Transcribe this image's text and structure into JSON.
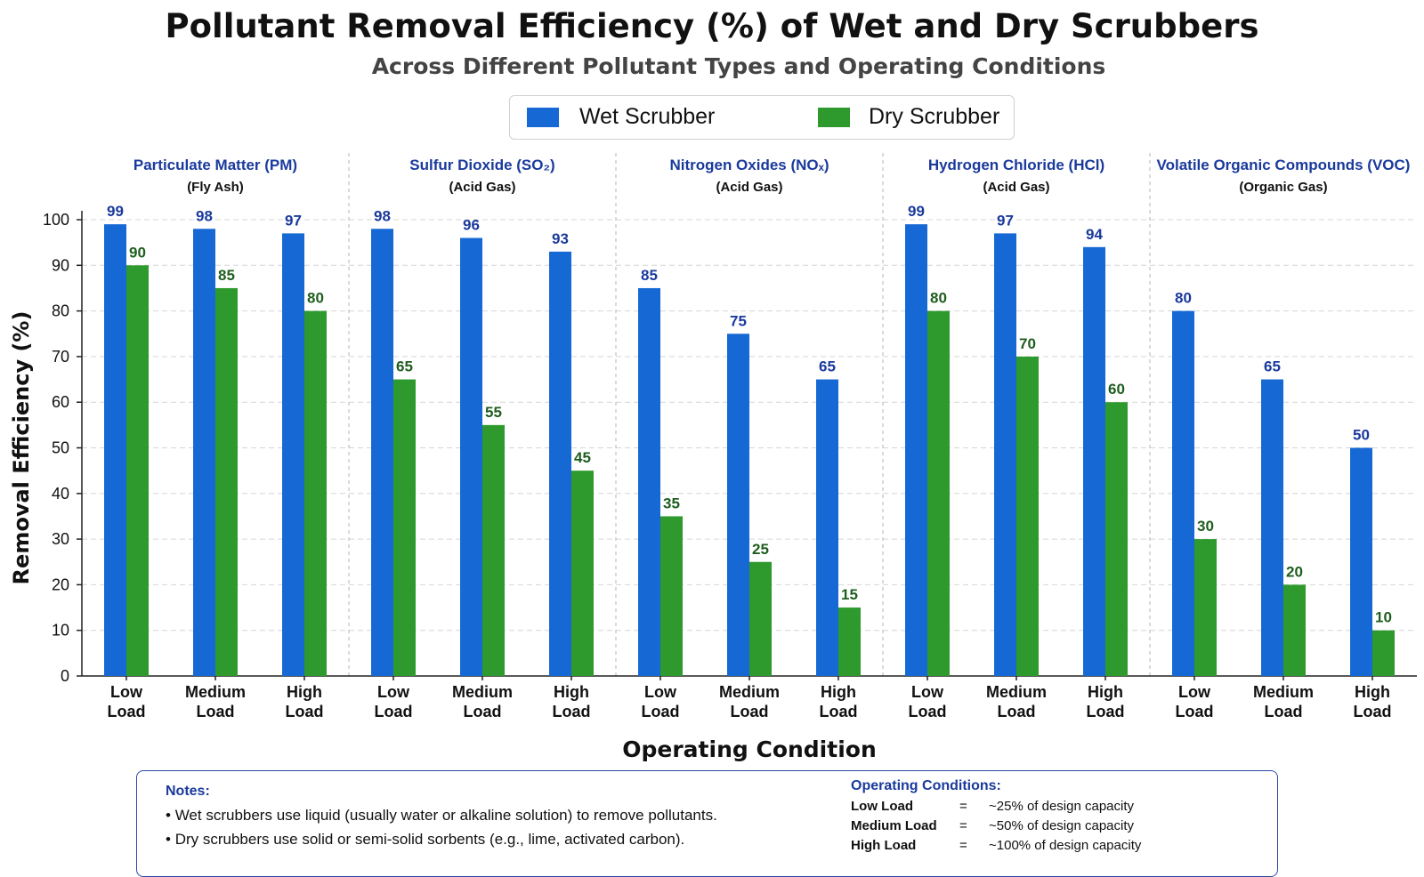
{
  "title": "Pollutant Removal Efficiency (%) of Wet and Dry Scrubbers",
  "subtitle": "Across Different Pollutant Types and Operating Conditions",
  "colors": {
    "wet": "#1668d4",
    "dry": "#2e9a2e",
    "wet_label": "#1a3a9c",
    "dry_label": "#1e5e1e",
    "group_title": "#1a3a9c"
  },
  "chart_data": {
    "type": "bar",
    "title": "Pollutant Removal Efficiency (%) of Wet and Dry Scrubbers",
    "subtitle": "Across Different Pollutant Types and Operating Conditions",
    "xlabel": "Operating Condition",
    "ylabel": "Removal Efficiency (%)",
    "ylim": [
      0,
      100
    ],
    "yticks": [
      0,
      10,
      20,
      30,
      40,
      50,
      60,
      70,
      80,
      90,
      100
    ],
    "grid": true,
    "legend_position": "top-center",
    "legend": [
      "Wet Scrubber",
      "Dry Scrubber"
    ],
    "condition_labels": [
      [
        "Low",
        "Load"
      ],
      [
        "Medium",
        "Load"
      ],
      [
        "High",
        "Load"
      ]
    ],
    "groups": [
      {
        "title": "Particulate Matter (PM)",
        "subtitle": "(Fly Ash)",
        "wet": [
          99,
          98,
          97
        ],
        "dry": [
          90,
          85,
          80
        ]
      },
      {
        "title": "Sulfur Dioxide (SO₂)",
        "subtitle": "(Acid Gas)",
        "wet": [
          98,
          96,
          93
        ],
        "dry": [
          65,
          55,
          45
        ]
      },
      {
        "title": "Nitrogen Oxides (NOₓ)",
        "subtitle": "(Acid Gas)",
        "wet": [
          85,
          75,
          65
        ],
        "dry": [
          35,
          25,
          15
        ]
      },
      {
        "title": "Hydrogen Chloride (HCl)",
        "subtitle": "(Acid Gas)",
        "wet": [
          99,
          97,
          94
        ],
        "dry": [
          80,
          70,
          60
        ]
      },
      {
        "title": "Volatile Organic Compounds (VOC)",
        "subtitle": "(Organic Gas)",
        "wet": [
          80,
          65,
          50
        ],
        "dry": [
          30,
          20,
          10
        ]
      }
    ],
    "series": [
      {
        "name": "Wet Scrubber",
        "values": [
          99,
          98,
          97,
          98,
          96,
          93,
          85,
          75,
          65,
          99,
          97,
          94,
          80,
          65,
          50
        ]
      },
      {
        "name": "Dry Scrubber",
        "values": [
          90,
          85,
          80,
          65,
          55,
          45,
          35,
          25,
          15,
          80,
          70,
          60,
          30,
          20,
          10
        ]
      }
    ]
  },
  "notes": {
    "heading": "Notes:",
    "items": [
      "Wet scrubbers use liquid (usually water or alkaline solution) to remove pollutants.",
      "Dry scrubbers use solid or semi-solid sorbents (e.g., lime, activated carbon)."
    ]
  },
  "operating_conditions": {
    "heading": "Operating Conditions:",
    "rows": [
      {
        "term": "Low Load",
        "eq": "=",
        "desc": "~25% of design capacity"
      },
      {
        "term": "Medium Load",
        "eq": "=",
        "desc": "~50% of design capacity"
      },
      {
        "term": "High Load",
        "eq": "=",
        "desc": "~100% of design capacity"
      }
    ]
  }
}
